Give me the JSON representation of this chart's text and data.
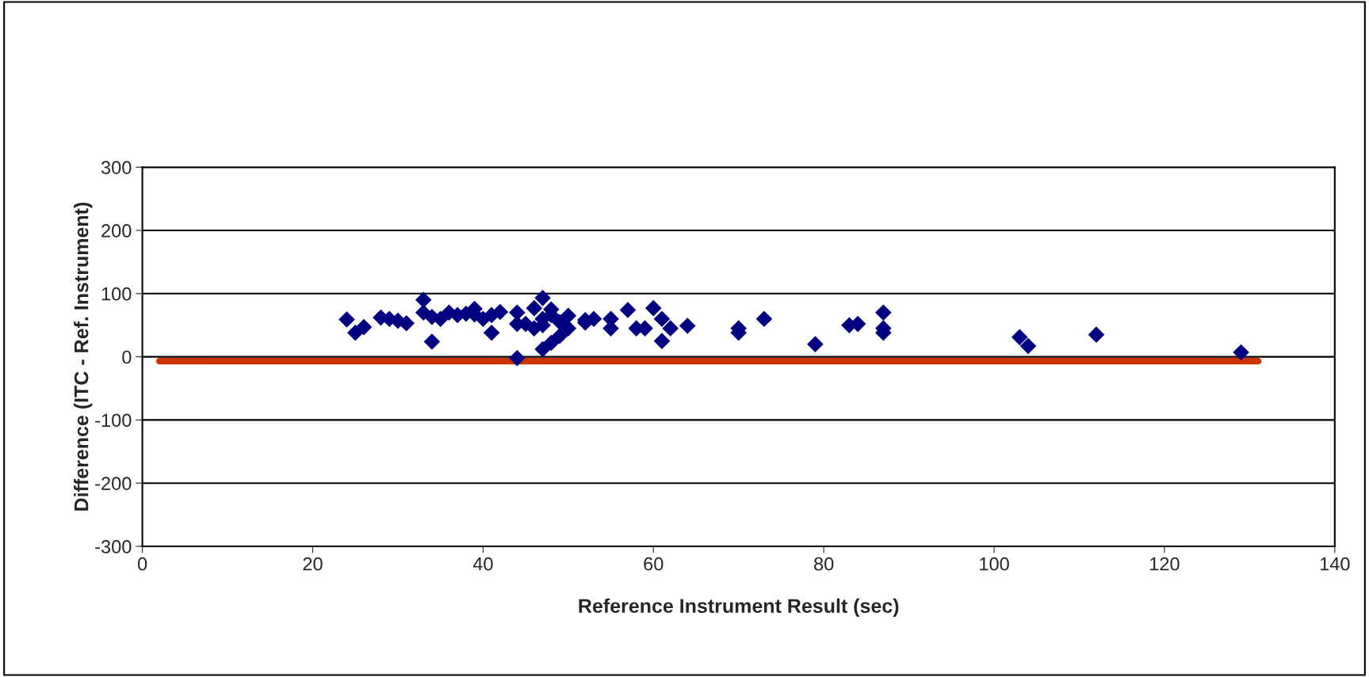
{
  "chart_data": {
    "type": "scatter",
    "xlabel": "Reference Instrument Result (sec)",
    "ylabel": "Difference (ITC - Ref. Instrument)",
    "xlim": [
      0,
      140
    ],
    "xticks": [
      0,
      20,
      40,
      60,
      80,
      100,
      120,
      140
    ],
    "ylim": [
      -300,
      300
    ],
    "yticks": [
      -300,
      -200,
      -100,
      0,
      100,
      200,
      300
    ],
    "grid": "y",
    "legend": false,
    "series": [
      {
        "marker": "diamond",
        "color": "#000080",
        "x": [
          24,
          25,
          26,
          28,
          29,
          30,
          31,
          33,
          33,
          34,
          34,
          35,
          36,
          37,
          38,
          39,
          39,
          40,
          41,
          41,
          42,
          44,
          44,
          44,
          45,
          46,
          46,
          47,
          47,
          47,
          47,
          48,
          48,
          48,
          49,
          49,
          50,
          50,
          52,
          52,
          53,
          55,
          55,
          57,
          58,
          59,
          60,
          61,
          61,
          62,
          64,
          70,
          70,
          73,
          79,
          83,
          84,
          87,
          87,
          87,
          103,
          104,
          112,
          129
        ],
        "values": [
          59,
          38,
          47,
          62,
          60,
          57,
          53,
          90,
          70,
          63,
          24,
          60,
          70,
          66,
          68,
          76,
          67,
          60,
          66,
          38,
          71,
          70,
          52,
          -2,
          52,
          77,
          45,
          93,
          60,
          50,
          12,
          75,
          66,
          22,
          33,
          55,
          65,
          45,
          58,
          54,
          60,
          60,
          45,
          74,
          45,
          45,
          77,
          60,
          25,
          45,
          49,
          45,
          38,
          60,
          20,
          50,
          52,
          70,
          45,
          38,
          31,
          17,
          35,
          7
        ]
      },
      {
        "type": "line",
        "marker": "none",
        "line_style": "solid",
        "color": "#cc3300",
        "x": [
          2,
          131
        ],
        "values": [
          -7,
          -7
        ]
      }
    ]
  }
}
